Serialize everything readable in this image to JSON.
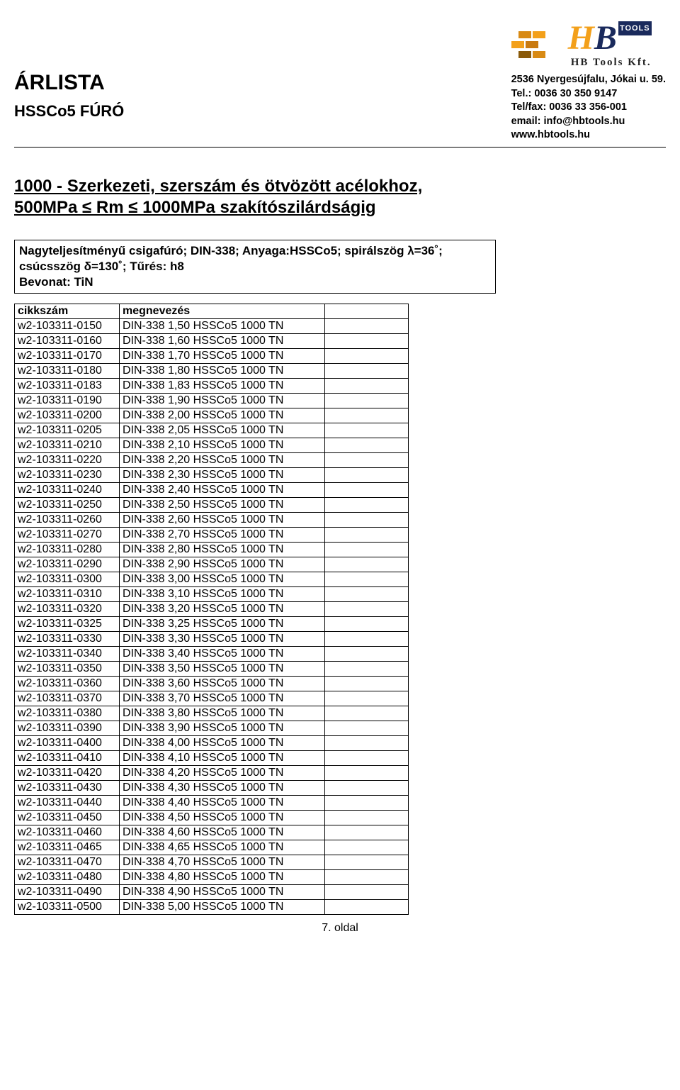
{
  "header": {
    "doc_title": "ÁRLISTA",
    "doc_subtitle": "HSSCo5 FÚRÓ",
    "logo_tools_label": "TOOLS",
    "logo_hb_h": "H",
    "logo_hb_b": "B",
    "logo_kft": "HB Tools Kft.",
    "address": "2536 Nyergesújfalu, Jókai u. 59.",
    "tel": "Tel.: 0036 30 350 9147",
    "telfax": "Tel/fax: 0036 33 356-001",
    "email": "email: info@hbtools.hu",
    "web": "www.hbtools.hu"
  },
  "section": {
    "title_line1": "1000 - Szerkezeti, szerszám és ötvözött acélokhoz,",
    "title_line2": "500MPa ≤ Rm ≤ 1000MPa szakítószilárdságig",
    "spec_line1": "Nagyteljesítményű csigafúró; DIN-338; Anyaga:HSSCo5; spirálszög λ=36˚;",
    "spec_line2": "csúcsszög δ=130˚; Tűrés: h8",
    "spec_line3": "Bevonat: TiN"
  },
  "table": {
    "headers": {
      "code": "cikkszám",
      "desc": "megnevezés"
    },
    "col_widths": {
      "code": 148,
      "desc": 290,
      "empty": 118
    },
    "rows": [
      {
        "code": "w2-103311-0150",
        "desc": "DIN-338 1,50 HSSCo5 1000 TN"
      },
      {
        "code": "w2-103311-0160",
        "desc": "DIN-338 1,60 HSSCo5 1000 TN"
      },
      {
        "code": "w2-103311-0170",
        "desc": "DIN-338 1,70 HSSCo5 1000 TN"
      },
      {
        "code": "w2-103311-0180",
        "desc": "DIN-338 1,80 HSSCo5 1000  TN"
      },
      {
        "code": "w2-103311-0183",
        "desc": "DIN-338 1,83 HSSCo5 1000  TN"
      },
      {
        "code": "w2-103311-0190",
        "desc": "DIN-338 1,90 HSSCo5 1000  TN"
      },
      {
        "code": "w2-103311-0200",
        "desc": "DIN-338 2,00 HSSCo5 1000  TN"
      },
      {
        "code": "w2-103311-0205",
        "desc": "DIN-338 2,05 HSSCo5 1000  TN"
      },
      {
        "code": "w2-103311-0210",
        "desc": "DIN-338 2,10 HSSCo5 1000  TN"
      },
      {
        "code": "w2-103311-0220",
        "desc": "DIN-338 2,20 HSSCo5 1000  TN"
      },
      {
        "code": "w2-103311-0230",
        "desc": "DIN-338 2,30 HSSCo5 1000  TN"
      },
      {
        "code": "w2-103311-0240",
        "desc": "DIN-338 2,40 HSSCo5 1000  TN"
      },
      {
        "code": "w2-103311-0250",
        "desc": "DIN-338 2,50 HSSCo5 1000  TN"
      },
      {
        "code": "w2-103311-0260",
        "desc": "DIN-338 2,60 HSSCo5 1000  TN"
      },
      {
        "code": "w2-103311-0270",
        "desc": "DIN-338 2,70 HSSCo5 1000  TN"
      },
      {
        "code": "w2-103311-0280",
        "desc": "DIN-338 2,80 HSSCo5 1000  TN"
      },
      {
        "code": "w2-103311-0290",
        "desc": "DIN-338 2,90 HSSCo5 1000  TN"
      },
      {
        "code": "w2-103311-0300",
        "desc": "DIN-338 3,00 HSSCo5 1000  TN"
      },
      {
        "code": "w2-103311-0310",
        "desc": "DIN-338 3,10 HSSCo5 1000  TN"
      },
      {
        "code": "w2-103311-0320",
        "desc": "DIN-338 3,20 HSSCo5 1000  TN"
      },
      {
        "code": "w2-103311-0325",
        "desc": "DIN-338 3,25 HSSCo5 1000  TN"
      },
      {
        "code": "w2-103311-0330",
        "desc": "DIN-338 3,30 HSSCo5 1000  TN"
      },
      {
        "code": "w2-103311-0340",
        "desc": "DIN-338 3,40 HSSCo5 1000  TN"
      },
      {
        "code": "w2-103311-0350",
        "desc": "DIN-338 3,50 HSSCo5 1000  TN"
      },
      {
        "code": "w2-103311-0360",
        "desc": "DIN-338 3,60 HSSCo5 1000  TN"
      },
      {
        "code": "w2-103311-0370",
        "desc": "DIN-338 3,70 HSSCo5 1000  TN"
      },
      {
        "code": "w2-103311-0380",
        "desc": "DIN-338 3,80 HSSCo5 1000  TN"
      },
      {
        "code": "w2-103311-0390",
        "desc": "DIN-338 3,90 HSSCo5 1000  TN"
      },
      {
        "code": "w2-103311-0400",
        "desc": "DIN-338 4,00 HSSCo5 1000  TN"
      },
      {
        "code": "w2-103311-0410",
        "desc": "DIN-338 4,10 HSSCo5 1000  TN"
      },
      {
        "code": "w2-103311-0420",
        "desc": "DIN-338 4,20 HSSCo5 1000  TN"
      },
      {
        "code": "w2-103311-0430",
        "desc": "DIN-338 4,30 HSSCo5 1000  TN"
      },
      {
        "code": "w2-103311-0440",
        "desc": "DIN-338 4,40 HSSCo5 1000  TN"
      },
      {
        "code": "w2-103311-0450",
        "desc": "DIN-338 4,50 HSSCo5 1000  TN"
      },
      {
        "code": "w2-103311-0460",
        "desc": "DIN-338 4,60 HSSCo5 1000  TN"
      },
      {
        "code": "w2-103311-0465",
        "desc": "DIN-338 4,65 HSSCo5 1000  TN"
      },
      {
        "code": "w2-103311-0470",
        "desc": "DIN-338 4,70 HSSCo5 1000  TN"
      },
      {
        "code": "w2-103311-0480",
        "desc": "DIN-338 4,80 HSSCo5 1000  TN"
      },
      {
        "code": "w2-103311-0490",
        "desc": "DIN-338 4,90 HSSCo5 1000  TN"
      },
      {
        "code": "w2-103311-0500",
        "desc": "DIN-338 5,00 HSSCo5 1000  TN"
      }
    ]
  },
  "footer": {
    "page_label": "7. oldal"
  },
  "colors": {
    "logo_orange": "#f3a01a",
    "logo_navy": "#1a2a5c",
    "text": "#000000",
    "bg": "#ffffff"
  }
}
